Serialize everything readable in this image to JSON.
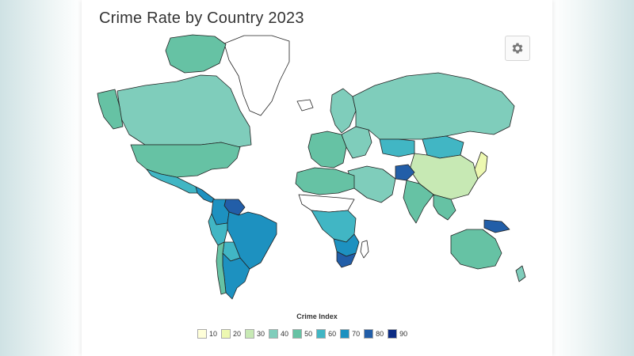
{
  "title": "Crime Rate by Country 2023",
  "toolbar": {
    "settings_icon": "gear-icon"
  },
  "legend": {
    "title": "Crime Index",
    "items": [
      {
        "label": "10",
        "color": "#ffffd9"
      },
      {
        "label": "20",
        "color": "#edf8b1"
      },
      {
        "label": "30",
        "color": "#c7e9b4"
      },
      {
        "label": "40",
        "color": "#7fcdbb"
      },
      {
        "label": "50",
        "color": "#66c2a4"
      },
      {
        "label": "60",
        "color": "#41b6c4"
      },
      {
        "label": "70",
        "color": "#1d91c0"
      },
      {
        "label": "80",
        "color": "#225ea8"
      },
      {
        "label": "90",
        "color": "#0c2c84"
      }
    ]
  },
  "map": {
    "no_data_color": "#ffffff",
    "regions": [
      {
        "name": "Greenland",
        "level": null
      },
      {
        "name": "Canada",
        "level": "40"
      },
      {
        "name": "Alaska",
        "level": "50"
      },
      {
        "name": "Arctic Islands",
        "level": "50"
      },
      {
        "name": "United States",
        "level": "50"
      },
      {
        "name": "Mexico",
        "level": "60"
      },
      {
        "name": "Central America",
        "level": "70"
      },
      {
        "name": "Venezuela",
        "level": "80"
      },
      {
        "name": "Colombia",
        "level": "70"
      },
      {
        "name": "Brazil",
        "level": "70"
      },
      {
        "name": "Peru",
        "level": "60"
      },
      {
        "name": "Bolivia",
        "level": "60"
      },
      {
        "name": "Argentina",
        "level": "70"
      },
      {
        "name": "Chile",
        "level": "50"
      },
      {
        "name": "Iceland",
        "level": null
      },
      {
        "name": "Scandinavia",
        "level": "40"
      },
      {
        "name": "Western Europe",
        "level": "50"
      },
      {
        "name": "Eastern Europe",
        "level": "40"
      },
      {
        "name": "Russia",
        "level": "40"
      },
      {
        "name": "Kazakhstan",
        "level": "60"
      },
      {
        "name": "Mongolia",
        "level": "60"
      },
      {
        "name": "China",
        "level": "30"
      },
      {
        "name": "Japan",
        "level": "20"
      },
      {
        "name": "Middle East",
        "level": "40"
      },
      {
        "name": "Afghanistan",
        "level": "80"
      },
      {
        "name": "India",
        "level": "50"
      },
      {
        "name": "Southeast Asia",
        "level": "50"
      },
      {
        "name": "Papua New Guinea",
        "level": "80"
      },
      {
        "name": "Australia",
        "level": "50"
      },
      {
        "name": "New Zealand",
        "level": "40"
      },
      {
        "name": "North Africa",
        "level": "50"
      },
      {
        "name": "Sahel",
        "level": null
      },
      {
        "name": "Central Africa",
        "level": "60"
      },
      {
        "name": "Southern Africa",
        "level": "70"
      },
      {
        "name": "South Africa",
        "level": "80"
      },
      {
        "name": "Madagascar",
        "level": null
      }
    ]
  }
}
